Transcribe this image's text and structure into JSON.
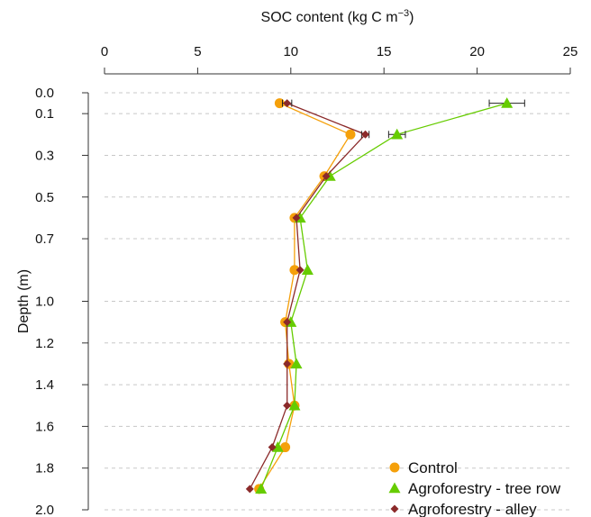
{
  "chart_data": {
    "type": "line",
    "orientation": "depth-profile",
    "xlabel_main": "SOC content (kg C m",
    "xlabel_sup": "−3",
    "xlabel_end": ")",
    "ylabel": "Depth (m)",
    "xlim": [
      0,
      25
    ],
    "ylim": [
      0,
      2.0
    ],
    "y_inverted": true,
    "x_axis_position": "top",
    "x_ticks": [
      "0",
      "5",
      "10",
      "15",
      "20",
      "25"
    ],
    "x_tick_values": [
      0,
      5,
      10,
      15,
      20,
      25
    ],
    "y_ticks": [
      "0.0",
      "0.1",
      "0.3",
      "0.5",
      "0.7",
      "1.0",
      "1.2",
      "1.4",
      "1.6",
      "1.8",
      "2.0"
    ],
    "y_tick_values": [
      0.0,
      0.1,
      0.3,
      0.5,
      0.7,
      1.0,
      1.2,
      1.4,
      1.6,
      1.8,
      2.0
    ],
    "grid": "horizontal-dashed",
    "legend_position": "bottom-right",
    "series": [
      {
        "name": "Control",
        "color": "#f5a00a",
        "marker": "circle",
        "depth": [
          0.05,
          0.2,
          0.4,
          0.6,
          0.85,
          1.1,
          1.3,
          1.5,
          1.7,
          1.9
        ],
        "soc": [
          9.4,
          13.2,
          11.8,
          10.2,
          10.2,
          9.7,
          9.9,
          10.2,
          9.7,
          8.3
        ]
      },
      {
        "name": "Agroforestry - tree row",
        "color": "#66cc00",
        "marker": "triangle",
        "depth": [
          0.05,
          0.2,
          0.4,
          0.6,
          0.85,
          1.1,
          1.3,
          1.5,
          1.7,
          1.9
        ],
        "soc": [
          21.6,
          15.7,
          12.1,
          10.5,
          10.9,
          10.0,
          10.3,
          10.2,
          9.3,
          8.4
        ],
        "error": [
          0.95,
          0.45,
          0,
          0,
          0,
          0,
          0,
          0,
          0,
          0
        ]
      },
      {
        "name": "Agroforestry - alley",
        "color": "#8b2a2a",
        "marker": "diamond",
        "depth": [
          0.05,
          0.2,
          0.4,
          0.6,
          0.85,
          1.1,
          1.3,
          1.5,
          1.7,
          1.9
        ],
        "soc": [
          9.8,
          14.0,
          11.9,
          10.3,
          10.5,
          9.8,
          9.8,
          9.8,
          9.0,
          7.8
        ],
        "error": [
          0.25,
          0.2,
          0,
          0,
          0,
          0,
          0,
          0,
          0,
          0
        ]
      }
    ]
  }
}
